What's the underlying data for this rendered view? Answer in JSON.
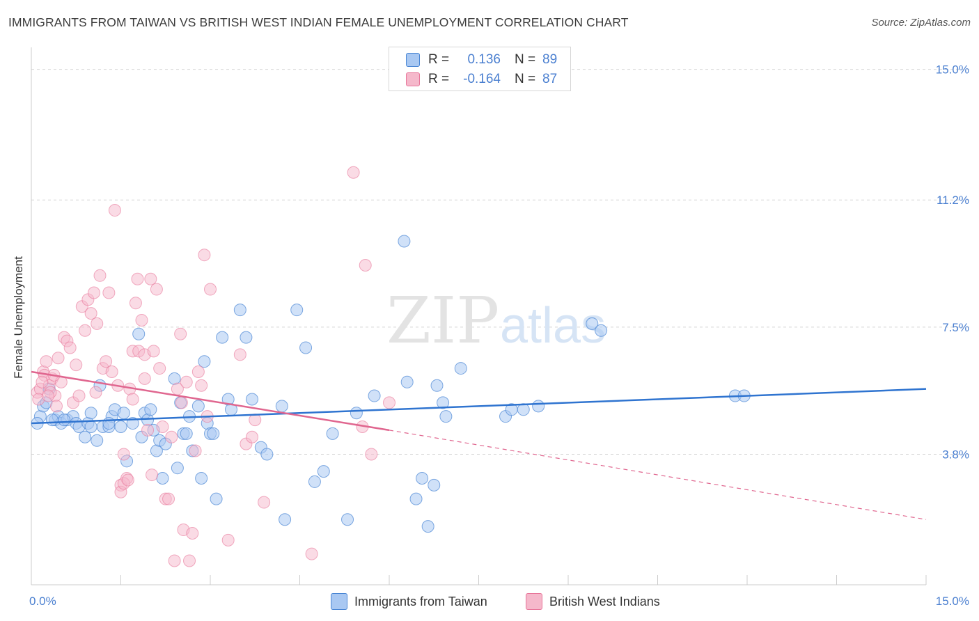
{
  "title": "IMMIGRANTS FROM TAIWAN VS BRITISH WEST INDIAN FEMALE UNEMPLOYMENT CORRELATION CHART",
  "source": "Source: ZipAtlas.com",
  "watermark": {
    "zip": "ZIP",
    "atlas": "atlas"
  },
  "legend": {
    "rows": [
      {
        "r_label": "R =",
        "r_value": "0.136",
        "n_label": "N =",
        "n_value": "89"
      },
      {
        "r_label": "R =",
        "r_value": "-0.164",
        "n_label": "N =",
        "n_value": "87"
      }
    ]
  },
  "bottom_legend": [
    "Immigrants from Taiwan",
    "British West Indians"
  ],
  "colors": {
    "blue_fill": "#a9c8f2",
    "blue_stroke": "#4a86d4",
    "blue_line": "#2f74d0",
    "pink_fill": "#f5b8cb",
    "pink_stroke": "#e8769a",
    "pink_line": "#e0668f",
    "grid": "#d5d5d5",
    "tick_label": "#4a7fd0"
  },
  "chart_data": {
    "type": "scatter",
    "title": "IMMIGRANTS FROM TAIWAN VS BRITISH WEST INDIAN FEMALE UNEMPLOYMENT CORRELATION CHART",
    "xlabel": "",
    "ylabel": "Female Unemployment",
    "xlim": [
      0,
      15
    ],
    "ylim": [
      0,
      15.5
    ],
    "x_tick_labels": [
      "0.0%",
      "15.0%"
    ],
    "y_ticks": [
      3.8,
      7.5,
      11.2,
      15.0
    ],
    "y_tick_labels": [
      "3.8%",
      "7.5%",
      "11.2%",
      "15.0%"
    ],
    "grid": "horizontal dashed",
    "series": [
      {
        "name": "Immigrants from Taiwan",
        "r": 0.136,
        "n": 89,
        "trend": {
          "x0": 0,
          "y0": 4.7,
          "x1": 15,
          "y1": 5.7
        },
        "points": [
          [
            0.15,
            4.9
          ],
          [
            0.2,
            5.2
          ],
          [
            0.3,
            5.7
          ],
          [
            0.4,
            4.8
          ],
          [
            0.45,
            4.9
          ],
          [
            0.5,
            4.7
          ],
          [
            0.6,
            4.8
          ],
          [
            0.7,
            4.9
          ],
          [
            0.75,
            4.7
          ],
          [
            0.8,
            4.6
          ],
          [
            0.9,
            4.3
          ],
          [
            0.95,
            4.7
          ],
          [
            1.0,
            5.0
          ],
          [
            1.1,
            4.2
          ],
          [
            1.15,
            5.8
          ],
          [
            1.2,
            4.6
          ],
          [
            1.3,
            4.6
          ],
          [
            1.35,
            4.9
          ],
          [
            1.4,
            5.1
          ],
          [
            1.5,
            4.6
          ],
          [
            1.55,
            5.0
          ],
          [
            1.6,
            3.6
          ],
          [
            1.7,
            4.7
          ],
          [
            1.8,
            7.3
          ],
          [
            1.85,
            4.3
          ],
          [
            1.9,
            5.0
          ],
          [
            1.95,
            4.8
          ],
          [
            2.0,
            5.1
          ],
          [
            2.05,
            4.5
          ],
          [
            2.1,
            3.9
          ],
          [
            2.15,
            4.2
          ],
          [
            2.2,
            3.1
          ],
          [
            2.25,
            4.1
          ],
          [
            2.4,
            6.0
          ],
          [
            2.45,
            3.4
          ],
          [
            2.5,
            5.3
          ],
          [
            2.55,
            4.4
          ],
          [
            2.6,
            4.4
          ],
          [
            2.65,
            4.9
          ],
          [
            2.7,
            3.9
          ],
          [
            2.8,
            5.2
          ],
          [
            2.85,
            3.1
          ],
          [
            2.9,
            6.5
          ],
          [
            2.95,
            4.7
          ],
          [
            3.0,
            4.4
          ],
          [
            3.05,
            4.4
          ],
          [
            3.1,
            2.5
          ],
          [
            3.2,
            7.2
          ],
          [
            3.3,
            5.4
          ],
          [
            3.35,
            5.1
          ],
          [
            3.5,
            8.0
          ],
          [
            3.6,
            7.2
          ],
          [
            3.7,
            5.4
          ],
          [
            3.85,
            4.0
          ],
          [
            3.95,
            3.8
          ],
          [
            4.2,
            5.2
          ],
          [
            4.25,
            1.9
          ],
          [
            4.45,
            8.0
          ],
          [
            4.6,
            6.9
          ],
          [
            4.75,
            3.0
          ],
          [
            4.9,
            3.3
          ],
          [
            5.05,
            4.4
          ],
          [
            5.3,
            1.9
          ],
          [
            5.45,
            5.0
          ],
          [
            5.75,
            5.5
          ],
          [
            6.25,
            10.0
          ],
          [
            6.3,
            5.9
          ],
          [
            6.45,
            2.5
          ],
          [
            6.55,
            3.1
          ],
          [
            6.65,
            1.7
          ],
          [
            6.75,
            2.9
          ],
          [
            6.8,
            5.8
          ],
          [
            6.9,
            5.3
          ],
          [
            6.95,
            4.9
          ],
          [
            7.2,
            6.3
          ],
          [
            7.95,
            4.9
          ],
          [
            8.05,
            5.1
          ],
          [
            8.25,
            5.1
          ],
          [
            8.5,
            5.2
          ],
          [
            9.4,
            7.6
          ],
          [
            9.55,
            7.4
          ],
          [
            11.8,
            5.5
          ],
          [
            11.95,
            5.5
          ],
          [
            0.1,
            4.7
          ],
          [
            0.25,
            5.3
          ],
          [
            0.35,
            4.8
          ],
          [
            1.0,
            4.6
          ],
          [
            0.55,
            4.8
          ],
          [
            1.3,
            4.7
          ]
        ]
      },
      {
        "name": "British West Indians",
        "r": -0.164,
        "n": 87,
        "trend": {
          "x0": 0,
          "y0": 6.2,
          "x1": 6.0,
          "y1": 4.5,
          "dash_x1": 15,
          "dash_y1": 1.9
        },
        "points": [
          [
            0.1,
            5.6
          ],
          [
            0.15,
            5.7
          ],
          [
            0.2,
            6.2
          ],
          [
            0.25,
            6.5
          ],
          [
            0.3,
            5.8
          ],
          [
            0.35,
            6.0
          ],
          [
            0.4,
            5.5
          ],
          [
            0.45,
            6.6
          ],
          [
            0.5,
            5.9
          ],
          [
            0.55,
            7.2
          ],
          [
            0.6,
            7.1
          ],
          [
            0.65,
            6.9
          ],
          [
            0.7,
            5.3
          ],
          [
            0.75,
            6.4
          ],
          [
            0.8,
            5.5
          ],
          [
            0.85,
            8.1
          ],
          [
            0.9,
            7.4
          ],
          [
            0.95,
            8.3
          ],
          [
            1.0,
            7.9
          ],
          [
            1.05,
            8.5
          ],
          [
            1.1,
            7.6
          ],
          [
            1.15,
            9.0
          ],
          [
            1.2,
            6.3
          ],
          [
            1.25,
            6.5
          ],
          [
            1.3,
            8.5
          ],
          [
            1.35,
            6.2
          ],
          [
            1.4,
            10.9
          ],
          [
            1.45,
            5.8
          ],
          [
            1.5,
            2.9
          ],
          [
            1.55,
            3.8
          ],
          [
            1.6,
            3.1
          ],
          [
            1.65,
            5.7
          ],
          [
            1.7,
            6.8
          ],
          [
            1.75,
            8.2
          ],
          [
            1.8,
            6.8
          ],
          [
            1.85,
            7.7
          ],
          [
            1.9,
            6.7
          ],
          [
            1.95,
            4.5
          ],
          [
            2.0,
            8.9
          ],
          [
            2.05,
            6.8
          ],
          [
            2.1,
            8.6
          ],
          [
            2.15,
            6.3
          ],
          [
            2.2,
            4.6
          ],
          [
            2.25,
            2.5
          ],
          [
            2.3,
            2.5
          ],
          [
            2.4,
            0.7
          ],
          [
            2.45,
            5.7
          ],
          [
            2.5,
            7.3
          ],
          [
            2.55,
            1.6
          ],
          [
            2.6,
            5.9
          ],
          [
            2.65,
            0.7
          ],
          [
            2.7,
            1.5
          ],
          [
            2.75,
            3.9
          ],
          [
            2.8,
            6.2
          ],
          [
            2.85,
            5.8
          ],
          [
            2.9,
            9.6
          ],
          [
            2.95,
            4.9
          ],
          [
            3.0,
            8.6
          ],
          [
            3.3,
            1.3
          ],
          [
            3.5,
            6.7
          ],
          [
            3.6,
            4.1
          ],
          [
            3.7,
            4.3
          ],
          [
            3.75,
            4.8
          ],
          [
            3.9,
            2.4
          ],
          [
            4.7,
            0.9
          ],
          [
            5.4,
            12.0
          ],
          [
            5.55,
            4.6
          ],
          [
            5.6,
            9.3
          ],
          [
            5.7,
            3.8
          ],
          [
            6.0,
            5.3
          ],
          [
            0.12,
            5.4
          ],
          [
            0.22,
            6.1
          ],
          [
            0.32,
            5.6
          ],
          [
            0.42,
            5.2
          ],
          [
            1.5,
            2.7
          ],
          [
            1.55,
            2.95
          ],
          [
            1.62,
            3.05
          ],
          [
            1.7,
            5.4
          ],
          [
            1.78,
            8.9
          ],
          [
            0.28,
            5.5
          ],
          [
            0.38,
            6.1
          ],
          [
            0.18,
            5.9
          ],
          [
            1.08,
            5.6
          ],
          [
            1.9,
            6.0
          ],
          [
            2.02,
            3.2
          ],
          [
            2.35,
            4.3
          ],
          [
            2.52,
            5.3
          ]
        ]
      }
    ]
  }
}
